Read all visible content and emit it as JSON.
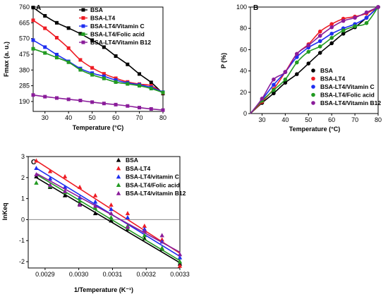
{
  "colors": {
    "black": "#000000",
    "red": "#ee1c24",
    "blue": "#1e2ef0",
    "green": "#229a22",
    "purple": "#8a1c9a",
    "zero_line": "#888888"
  },
  "chart_data": [
    {
      "panel": "A",
      "type": "line",
      "xlabel": "Temperature (°C)",
      "ylabel": "Fmax (a. u.)",
      "xlim": [
        25,
        80
      ],
      "ylim": [
        130,
        760
      ],
      "xticks": [
        30,
        40,
        50,
        60,
        70,
        80
      ],
      "yticks": [
        190,
        285,
        380,
        475,
        570,
        665,
        760
      ],
      "grid": false,
      "legend_position": "top-right",
      "marker": "square",
      "series": [
        {
          "name": "BSA",
          "color": "#000000",
          "x": [
            25,
            30,
            35,
            40,
            45,
            50,
            55,
            60,
            65,
            70,
            75,
            80
          ],
          "y": [
            757,
            707,
            665,
            633,
            599,
            560,
            518,
            464,
            414,
            356,
            305,
            238
          ]
        },
        {
          "name": "BSA-LT4",
          "color": "#ee1c24",
          "x": [
            25,
            30,
            35,
            40,
            45,
            50,
            55,
            60,
            65,
            70,
            75,
            80
          ],
          "y": [
            680,
            632,
            575,
            512,
            441,
            393,
            357,
            330,
            308,
            295,
            285,
            242
          ]
        },
        {
          "name": "BSA-LT4/Vitamin C",
          "color": "#1e2ef0",
          "x": [
            25,
            30,
            35,
            40,
            45,
            50,
            55,
            60,
            65,
            70,
            75,
            80
          ],
          "y": [
            560,
            518,
            473,
            432,
            389,
            361,
            342,
            319,
            302,
            291,
            275,
            246
          ]
        },
        {
          "name": "BSA-LT4/Folic acid",
          "color": "#229a22",
          "x": [
            25,
            30,
            35,
            40,
            45,
            50,
            55,
            60,
            65,
            70,
            75,
            80
          ],
          "y": [
            508,
            483,
            455,
            427,
            381,
            351,
            329,
            307,
            296,
            285,
            268,
            244
          ]
        },
        {
          "name": "BSA-LT4/Vitamin B12",
          "color": "#8a1c9a",
          "x": [
            25,
            30,
            35,
            40,
            45,
            50,
            55,
            60,
            65,
            70,
            75,
            80
          ],
          "y": [
            229,
            219,
            211,
            203,
            196,
            186,
            178,
            171,
            163,
            153,
            145,
            138
          ]
        }
      ]
    },
    {
      "panel": "B",
      "type": "line",
      "xlabel": "Temperature (°C)",
      "ylabel": "P (%)",
      "xlim": [
        25,
        80
      ],
      "ylim": [
        0,
        100
      ],
      "xticks": [
        30,
        40,
        50,
        60,
        70,
        80
      ],
      "yticks": [
        0,
        20,
        40,
        60,
        80,
        100
      ],
      "grid": false,
      "legend_position": "bottom-right",
      "marker": "circle",
      "series": [
        {
          "name": "BSA",
          "color": "#000000",
          "x": [
            30,
            35,
            40,
            45,
            50,
            55,
            60,
            65,
            70,
            75,
            80
          ],
          "y": [
            10,
            19,
            29,
            37,
            47,
            57,
            66,
            75,
            81,
            90,
            100
          ]
        },
        {
          "name": "BSA-LT4",
          "color": "#ee1c24",
          "x": [
            30,
            35,
            40,
            45,
            50,
            55,
            60,
            65,
            70,
            75,
            80
          ],
          "y": [
            11,
            23,
            39,
            56,
            65,
            77,
            84,
            89,
            91,
            94,
            100
          ]
        },
        {
          "name": "BSA-LT4/Vitamin C",
          "color": "#1e2ef0",
          "x": [
            30,
            35,
            40,
            45,
            50,
            55,
            60,
            65,
            70,
            75,
            80
          ],
          "y": [
            13,
            27,
            39,
            53,
            62,
            68,
            75,
            80,
            84,
            90,
            100
          ]
        },
        {
          "name": "BSA-LT4/Folic acid",
          "color": "#229a22",
          "x": [
            30,
            35,
            40,
            45,
            50,
            55,
            60,
            65,
            70,
            75,
            80
          ],
          "y": [
            12,
            22,
            32,
            48,
            58,
            63,
            71,
            78,
            82,
            85,
            100
          ]
        },
        {
          "name": "BSA-LT4/Vitamin B12",
          "color": "#8a1c9a",
          "x": [
            30,
            35,
            40,
            45,
            50,
            55,
            60,
            65,
            70,
            75,
            80
          ],
          "y": [
            14,
            32,
            39,
            56,
            64,
            73,
            81,
            87,
            90,
            95,
            100
          ]
        }
      ]
    },
    {
      "panel": "C",
      "type": "scatter",
      "xlabel": "1/Temperature (K⁻¹)",
      "ylabel": "lnKeq",
      "xlim": [
        0.00285,
        0.0033
      ],
      "ylim": [
        -2.3,
        3
      ],
      "xticks": [
        0.0029,
        0.003,
        0.0031,
        0.0032,
        0.0033
      ],
      "xtick_labels": [
        "0.0029",
        "0.0030",
        "0.0031",
        "0.0032",
        "0.0033"
      ],
      "yticks": [
        -2,
        -1,
        0,
        1,
        2,
        3
      ],
      "grid": false,
      "zero_line": true,
      "legend_position": "top-left",
      "marker": "triangle",
      "fit_lines": "linear",
      "series": [
        {
          "name": "BSA",
          "color": "#000000",
          "x": [
            0.002874,
            0.002915,
            0.002959,
            0.003003,
            0.003049,
            0.003096,
            0.003145,
            0.003195,
            0.003247,
            0.0033
          ],
          "y": [
            2.05,
            1.55,
            1.15,
            0.75,
            0.3,
            -0.05,
            -0.45,
            -0.9,
            -1.4,
            -2.1
          ],
          "fit": [
            [
              0.002874,
              2.0
            ],
            [
              0.0033,
              -2.05
            ]
          ]
        },
        {
          "name": "BSA-LT4",
          "color": "#ee1c24",
          "x": [
            0.002874,
            0.002915,
            0.002959,
            0.003003,
            0.003049,
            0.003096,
            0.003145,
            0.003195,
            0.003247,
            0.0033
          ],
          "y": [
            2.8,
            2.3,
            2.05,
            1.55,
            1.15,
            0.7,
            0.3,
            -0.3,
            -0.95,
            -2.2
          ],
          "fit": [
            [
              0.002874,
              2.8
            ],
            [
              0.0033,
              -1.6
            ]
          ]
        },
        {
          "name": "BSA-LT4/vitamin C",
          "color": "#1e2ef0",
          "x": [
            0.002874,
            0.002915,
            0.002959,
            0.003003,
            0.003049,
            0.003096,
            0.003145,
            0.003195,
            0.003247,
            0.0033
          ],
          "y": [
            2.45,
            1.95,
            1.55,
            1.05,
            0.85,
            0.5,
            0.1,
            -0.45,
            -1.05,
            -1.8
          ],
          "fit": [
            [
              0.002874,
              2.45
            ],
            [
              0.0033,
              -1.75
            ]
          ]
        },
        {
          "name": "BSA-LT4/Folic acid",
          "color": "#229a22",
          "x": [
            0.002874,
            0.002915,
            0.002959,
            0.003003,
            0.003049,
            0.003096,
            0.003145,
            0.003195,
            0.003247,
            0.0033
          ],
          "y": [
            1.75,
            1.6,
            1.3,
            0.9,
            0.55,
            0.1,
            -0.3,
            -0.75,
            -1.35,
            -2.0
          ],
          "fit": [
            [
              0.002874,
              2.15
            ],
            [
              0.0033,
              -1.95
            ]
          ]
        },
        {
          "name": "BSA-LT4/vitamin B12",
          "color": "#8a1c9a",
          "x": [
            0.002874,
            0.002915,
            0.002959,
            0.003003,
            0.003049,
            0.003096,
            0.003145,
            0.003195,
            0.003247,
            0.0033
          ],
          "y": [
            2.15,
            1.65,
            1.35,
            0.7,
            0.65,
            0.3,
            -0.35,
            -0.55,
            -0.75,
            -1.65
          ],
          "fit": [
            [
              0.002874,
              2.2
            ],
            [
              0.0033,
              -1.55
            ]
          ]
        }
      ]
    }
  ]
}
